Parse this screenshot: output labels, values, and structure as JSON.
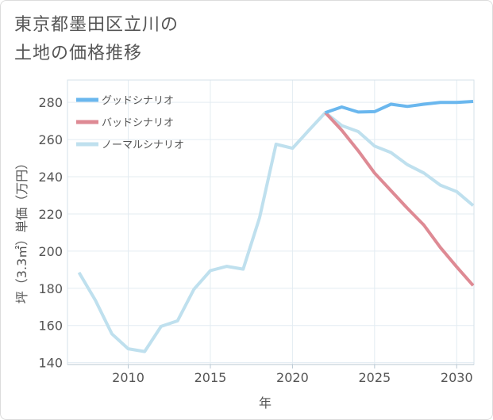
{
  "title": {
    "line1": "東京都墨田区立川の",
    "line2": "土地の価格推移"
  },
  "chart_data": {
    "type": "line",
    "title": "東京都墨田区立川の土地の価格推移",
    "xlabel": "年",
    "ylabel": "坪（3.3㎡）単価（万円）",
    "xlim": [
      2006.3,
      2031.05
    ],
    "ylim": [
      139,
      292
    ],
    "x_ticks": [
      2010,
      2015,
      2020,
      2025,
      2030
    ],
    "y_ticks": [
      140,
      160,
      180,
      200,
      220,
      240,
      260,
      280
    ],
    "grid": true,
    "legend_position": "top-left",
    "series": [
      {
        "name": "グッドシナリオ",
        "color": "#6ab7ee",
        "x": [
          2022,
          2023,
          2024,
          2025,
          2026,
          2027,
          2028,
          2029,
          2030,
          2031
        ],
        "y": [
          274.5,
          277.5,
          274.8,
          275.0,
          279.0,
          277.8,
          279.0,
          280.0,
          280.0,
          280.5
        ]
      },
      {
        "name": "バッドシナリオ",
        "color": "#de8a94",
        "x": [
          2022,
          2023,
          2024,
          2025,
          2026,
          2027,
          2028,
          2029,
          2030,
          2031
        ],
        "y": [
          274.5,
          265.0,
          254.0,
          242.0,
          232.5,
          223.0,
          214.0,
          202.0,
          191.5,
          181.5
        ]
      },
      {
        "name": "ノーマルシナリオ",
        "color": "#bfe0ee",
        "x": [
          2007,
          2008,
          2009,
          2010,
          2011,
          2012,
          2013,
          2014,
          2015,
          2016,
          2017,
          2018,
          2019,
          2020,
          2021,
          2022,
          2023,
          2024,
          2025,
          2026,
          2027,
          2028,
          2029,
          2030,
          2031
        ],
        "y": [
          188.5,
          173.5,
          155.5,
          147.5,
          146.0,
          159.5,
          162.5,
          179.5,
          189.5,
          191.8,
          190.3,
          218.0,
          257.5,
          255.3,
          265.0,
          274.5,
          267.5,
          264.3,
          256.5,
          253.0,
          246.5,
          242.0,
          235.5,
          232.0,
          224.5
        ]
      }
    ]
  }
}
